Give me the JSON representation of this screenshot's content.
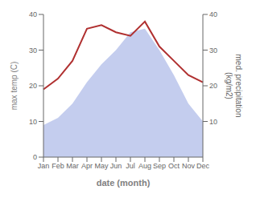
{
  "chart_data": {
    "type": "area",
    "xlabel": "date (month)",
    "ylabel": "max temp (C)",
    "y2label": "med. precipitation\n(kg/m2)",
    "categories": [
      "Jan",
      "Feb",
      "Mar",
      "Apr",
      "May",
      "Jun",
      "Jul",
      "Aug",
      "Sep",
      "Oct",
      "Nov",
      "Dec"
    ],
    "series": [
      {
        "type": "area",
        "color": "#b0bce8",
        "values": [
          9,
          11,
          15,
          21,
          26,
          30,
          35,
          36,
          30,
          23,
          15,
          10
        ]
      },
      {
        "type": "line",
        "color": "#b03030",
        "axis": "y2",
        "values": [
          19,
          22,
          27,
          36,
          37,
          35,
          34,
          38,
          31,
          27,
          23,
          21
        ]
      }
    ],
    "ylim": [
      0,
      40
    ],
    "yticks": [
      0,
      10,
      20,
      30,
      40
    ],
    "y2lim": [
      0,
      40
    ],
    "y2ticks": [
      10,
      20,
      30,
      40
    ]
  }
}
